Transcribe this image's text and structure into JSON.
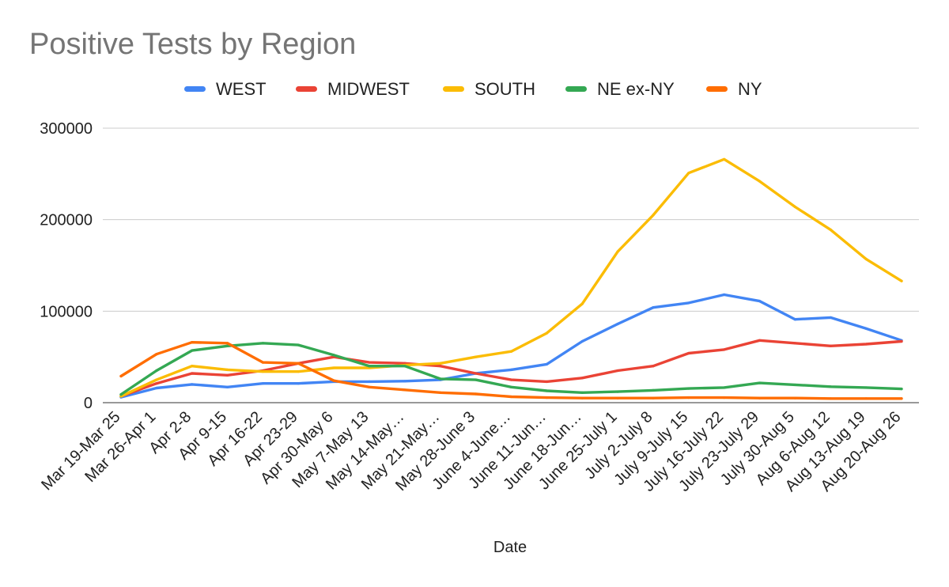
{
  "chart_data": {
    "type": "line",
    "title": "Positive Tests by Region",
    "xlabel": "Date",
    "ylabel": "",
    "ylim": [
      0,
      300000
    ],
    "yticks": [
      0,
      100000,
      200000,
      300000
    ],
    "ytick_labels": [
      "0",
      "100000",
      "200000",
      "300000"
    ],
    "grid": true,
    "legend_position": "top",
    "categories": [
      "Mar 19-Mar 25",
      "Mar 26-Apr 1",
      "Apr 2-8",
      "Apr 9-15",
      "Apr 16-22",
      "Apr 23-29",
      "Apr 30-May 6",
      "May 7-May 13",
      "May 14-May…",
      "May 21-May…",
      "May 28-June 3",
      "June 4-June…",
      "June 11-Jun…",
      "June 18-Jun…",
      "June 25-July 1",
      "July 2-July 8",
      "July 9-July 15",
      "July 16-July 22",
      "July 23-July 29",
      "July 30-Aug 5",
      "Aug 6-Aug 12",
      "Aug 13-Aug 19",
      "Aug 20-Aug 26"
    ],
    "series": [
      {
        "name": "WEST",
        "color": "#4285f4",
        "values": [
          6000,
          16000,
          20000,
          17000,
          21000,
          21000,
          23000,
          23000,
          23500,
          25000,
          32000,
          36000,
          42000,
          67000,
          86000,
          104000,
          109000,
          118000,
          111000,
          91000,
          93000,
          81000,
          68000
        ]
      },
      {
        "name": "MIDWEST",
        "color": "#ea4335",
        "values": [
          7000,
          21000,
          32000,
          30000,
          35000,
          43000,
          50000,
          44000,
          43000,
          40000,
          32000,
          25000,
          23000,
          27000,
          35000,
          40000,
          54000,
          58000,
          68000,
          65000,
          62000,
          64000,
          67000
        ]
      },
      {
        "name": "SOUTH",
        "color": "#fbbc04",
        "values": [
          7000,
          25000,
          40000,
          36000,
          34000,
          34000,
          38000,
          38000,
          41000,
          43000,
          50000,
          56000,
          76000,
          108000,
          165000,
          205000,
          251000,
          266000,
          242000,
          214000,
          189000,
          157000,
          133000
        ]
      },
      {
        "name": "NE ex-NY",
        "color": "#34a853",
        "values": [
          9000,
          35000,
          57000,
          62000,
          65000,
          63000,
          52000,
          40000,
          40000,
          26000,
          25000,
          17000,
          13000,
          11000,
          12000,
          13500,
          15500,
          16500,
          21500,
          19500,
          17500,
          16500,
          15000
        ]
      },
      {
        "name": "NY",
        "color": "#ff6d01",
        "values": [
          29000,
          53000,
          66000,
          65000,
          44000,
          43000,
          24000,
          17000,
          14000,
          11000,
          9500,
          6500,
          5500,
          5000,
          5000,
          5000,
          5500,
          5500,
          5000,
          5000,
          4500,
          4500,
          4500
        ]
      }
    ]
  }
}
